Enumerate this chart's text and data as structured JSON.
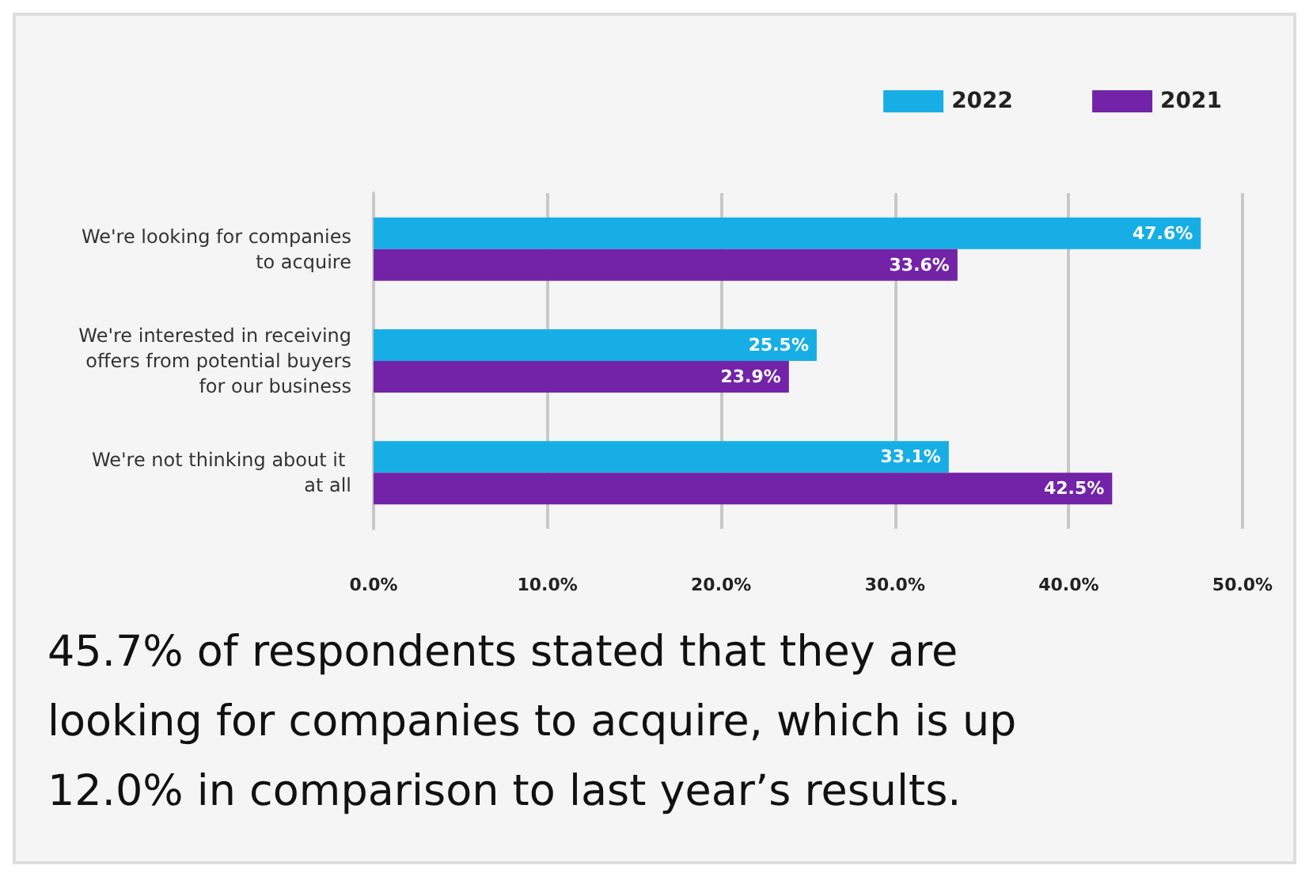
{
  "chart_data": {
    "type": "bar",
    "orientation": "horizontal",
    "categories": [
      "We're looking for companies to acquire",
      "We're interested in receiving offers from potential buyers for our business",
      "We're not thinking about it at all"
    ],
    "series": [
      {
        "name": "2022",
        "color": "#17aee6",
        "values": [
          47.6,
          25.5,
          33.1
        ],
        "value_labels": [
          "47.6%",
          "25.5%",
          "33.1%"
        ]
      },
      {
        "name": "2021",
        "color": "#7323a8",
        "values": [
          33.6,
          23.9,
          42.5
        ],
        "value_labels": [
          "33.6%",
          "23.9%",
          "42.5%"
        ]
      }
    ],
    "xlim": [
      0,
      50
    ],
    "xticks": [
      {
        "value": 0,
        "label": "0.0%"
      },
      {
        "value": 10,
        "label": "10.0%"
      },
      {
        "value": 20,
        "label": "20.0%"
      },
      {
        "value": 30,
        "label": "30.0%"
      },
      {
        "value": 40,
        "label": "40.0%"
      },
      {
        "value": 50,
        "label": "50.0%"
      }
    ],
    "grid": "x",
    "legend": "top right",
    "annotations": [
      "45.7% of respondents stated that they are looking for companies to acquire, which is up 12.0% in comparison to last year’s results."
    ]
  }
}
